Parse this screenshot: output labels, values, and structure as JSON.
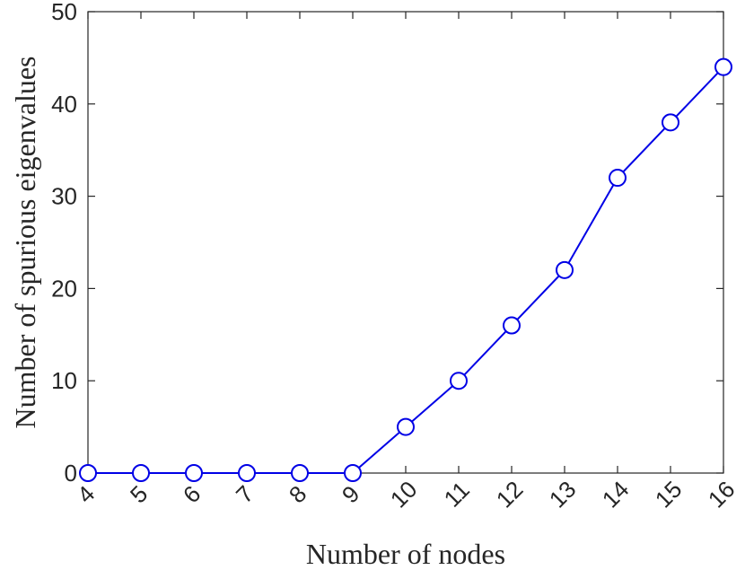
{
  "chart_data": {
    "type": "line",
    "x": [
      4,
      5,
      6,
      7,
      8,
      9,
      10,
      11,
      12,
      13,
      14,
      15,
      16
    ],
    "series": [
      {
        "values": [
          0,
          0,
          0,
          0,
          0,
          0,
          5,
          10,
          16,
          22,
          32,
          38,
          44
        ],
        "color": "#0000e6",
        "marker": "circle"
      }
    ],
    "xlabel": "Number of nodes",
    "ylabel": "Number of spurious eigenvalues",
    "xlim": [
      4,
      16
    ],
    "ylim": [
      0,
      50
    ],
    "xticks": [
      "4",
      "5",
      "6",
      "7",
      "8",
      "9",
      "10",
      "11",
      "12",
      "13",
      "14",
      "15",
      "16"
    ],
    "yticks": [
      "0",
      "10",
      "20",
      "30",
      "40",
      "50"
    ],
    "grid": false,
    "box": true
  }
}
